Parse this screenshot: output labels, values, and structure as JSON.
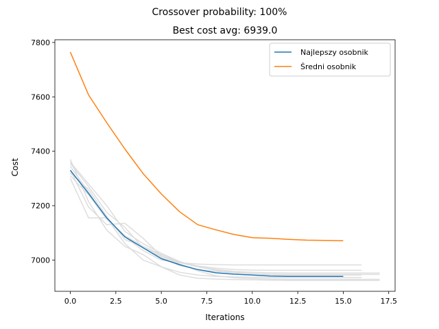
{
  "chart_data": {
    "type": "line",
    "suptitle": "Crossover probability: 100%",
    "title": "Best cost avg: 6939.0",
    "xlabel": "Iterations",
    "ylabel": "Cost",
    "xlim": [
      -0.85,
      17.85
    ],
    "ylim": [
      6885,
      7810
    ],
    "xticks": [
      0.0,
      2.5,
      5.0,
      7.5,
      10.0,
      12.5,
      15.0,
      17.5
    ],
    "xtick_labels": [
      "0.0",
      "2.5",
      "5.0",
      "7.5",
      "10.0",
      "12.5",
      "15.0",
      "17.5"
    ],
    "yticks": [
      7000,
      7200,
      7400,
      7600,
      7800
    ],
    "ytick_labels": [
      "7000",
      "7200",
      "7400",
      "7600",
      "7800"
    ],
    "grid": false,
    "legend_position": "top-right",
    "series": [
      {
        "name": "Najlepszy osobnik",
        "color": "#1f77b4",
        "x": [
          0,
          1,
          2,
          3,
          4,
          5,
          6,
          7,
          8,
          9,
          10,
          11,
          12,
          13,
          14,
          15
        ],
        "values": [
          7330,
          7245,
          7155,
          7085,
          7045,
          7005,
          6983,
          6965,
          6953,
          6948,
          6945,
          6941,
          6940,
          6940,
          6940,
          6940
        ]
      },
      {
        "name": "Średni osobnik",
        "color": "#ff7f0e",
        "x": [
          0,
          1,
          2,
          3,
          4,
          5,
          6,
          7,
          8,
          9,
          10,
          11,
          12,
          13,
          14,
          15
        ],
        "values": [
          7765,
          7607,
          7505,
          7408,
          7318,
          7243,
          7178,
          7130,
          7111,
          7094,
          7082,
          7080,
          7076,
          7073,
          7072,
          7071
        ]
      }
    ],
    "background_runs": {
      "color": "#dddddd",
      "runs": [
        {
          "x": [
            0,
            1,
            2,
            3,
            4,
            5,
            6,
            7,
            8,
            9,
            10,
            11,
            12,
            13,
            14,
            15,
            16
          ],
          "values": [
            7345,
            7250,
            7150,
            7085,
            7035,
            7000,
            6990,
            6985,
            6983,
            6982,
            6982,
            6982,
            6982,
            6982,
            6982,
            6982,
            6982
          ]
        },
        {
          "x": [
            0,
            1,
            2,
            3,
            4,
            5,
            6,
            7,
            8,
            9,
            10,
            11,
            12,
            13,
            14,
            15,
            16,
            17
          ],
          "values": [
            7310,
            7240,
            7150,
            7090,
            7050,
            7015,
            6990,
            6975,
            6965,
            6958,
            6955,
            6953,
            6952,
            6952,
            6952,
            6952,
            6952,
            6952
          ]
        },
        {
          "x": [
            0,
            1,
            2,
            3,
            4,
            5,
            6,
            7,
            8,
            9,
            10,
            11,
            12,
            13,
            14,
            15,
            16
          ],
          "values": [
            7300,
            7155,
            7155,
            7060,
            7000,
            6975,
            6955,
            6945,
            6940,
            6938,
            6937,
            6936,
            6936,
            6936,
            6936,
            6936,
            6936
          ]
        },
        {
          "x": [
            0,
            1,
            2,
            3,
            4,
            5,
            6,
            7,
            8,
            9,
            10,
            11,
            12,
            13,
            14,
            15,
            16,
            17
          ],
          "values": [
            7370,
            7215,
            7110,
            7050,
            7020,
            6975,
            6945,
            6933,
            6930,
            6928,
            6927,
            6926,
            6925,
            6925,
            6925,
            6925,
            6925,
            6925
          ]
        },
        {
          "x": [
            0,
            1,
            2,
            3,
            4,
            5,
            6,
            7,
            8,
            9,
            10,
            11,
            12,
            13,
            14,
            15,
            16,
            17
          ],
          "values": [
            7355,
            7270,
            7175,
            7120,
            7045,
            7010,
            6980,
            6965,
            6958,
            6953,
            6950,
            6948,
            6947,
            6947,
            6947,
            6947,
            6947,
            6947
          ]
        },
        {
          "x": [
            0,
            1,
            2,
            3,
            4,
            5,
            6,
            7,
            8,
            9,
            10,
            11,
            12,
            13,
            14,
            15,
            16
          ],
          "values": [
            7320,
            7260,
            7160,
            7075,
            7050,
            7020,
            6992,
            6978,
            6970,
            6965,
            6963,
            6962,
            6962,
            6962,
            6962,
            6962,
            6962
          ]
        },
        {
          "x": [
            0,
            1,
            2,
            3,
            4,
            5,
            6,
            7,
            8,
            9,
            10,
            11,
            12,
            13,
            14,
            15,
            16,
            17
          ],
          "values": [
            7330,
            7195,
            7130,
            7135,
            7080,
            7015,
            6985,
            6960,
            6942,
            6935,
            6932,
            6930,
            6929,
            6929,
            6929,
            6929,
            6929,
            6929
          ]
        },
        {
          "x": [
            0,
            1,
            2,
            3,
            4,
            5,
            6,
            7,
            8,
            9,
            10,
            11,
            12,
            13,
            14,
            15,
            16
          ],
          "values": [
            7360,
            7280,
            7200,
            7105,
            7060,
            7025,
            6995,
            6975,
            6962,
            6955,
            6950,
            6946,
            6945,
            6945,
            6945,
            6945,
            6945
          ]
        }
      ]
    }
  }
}
